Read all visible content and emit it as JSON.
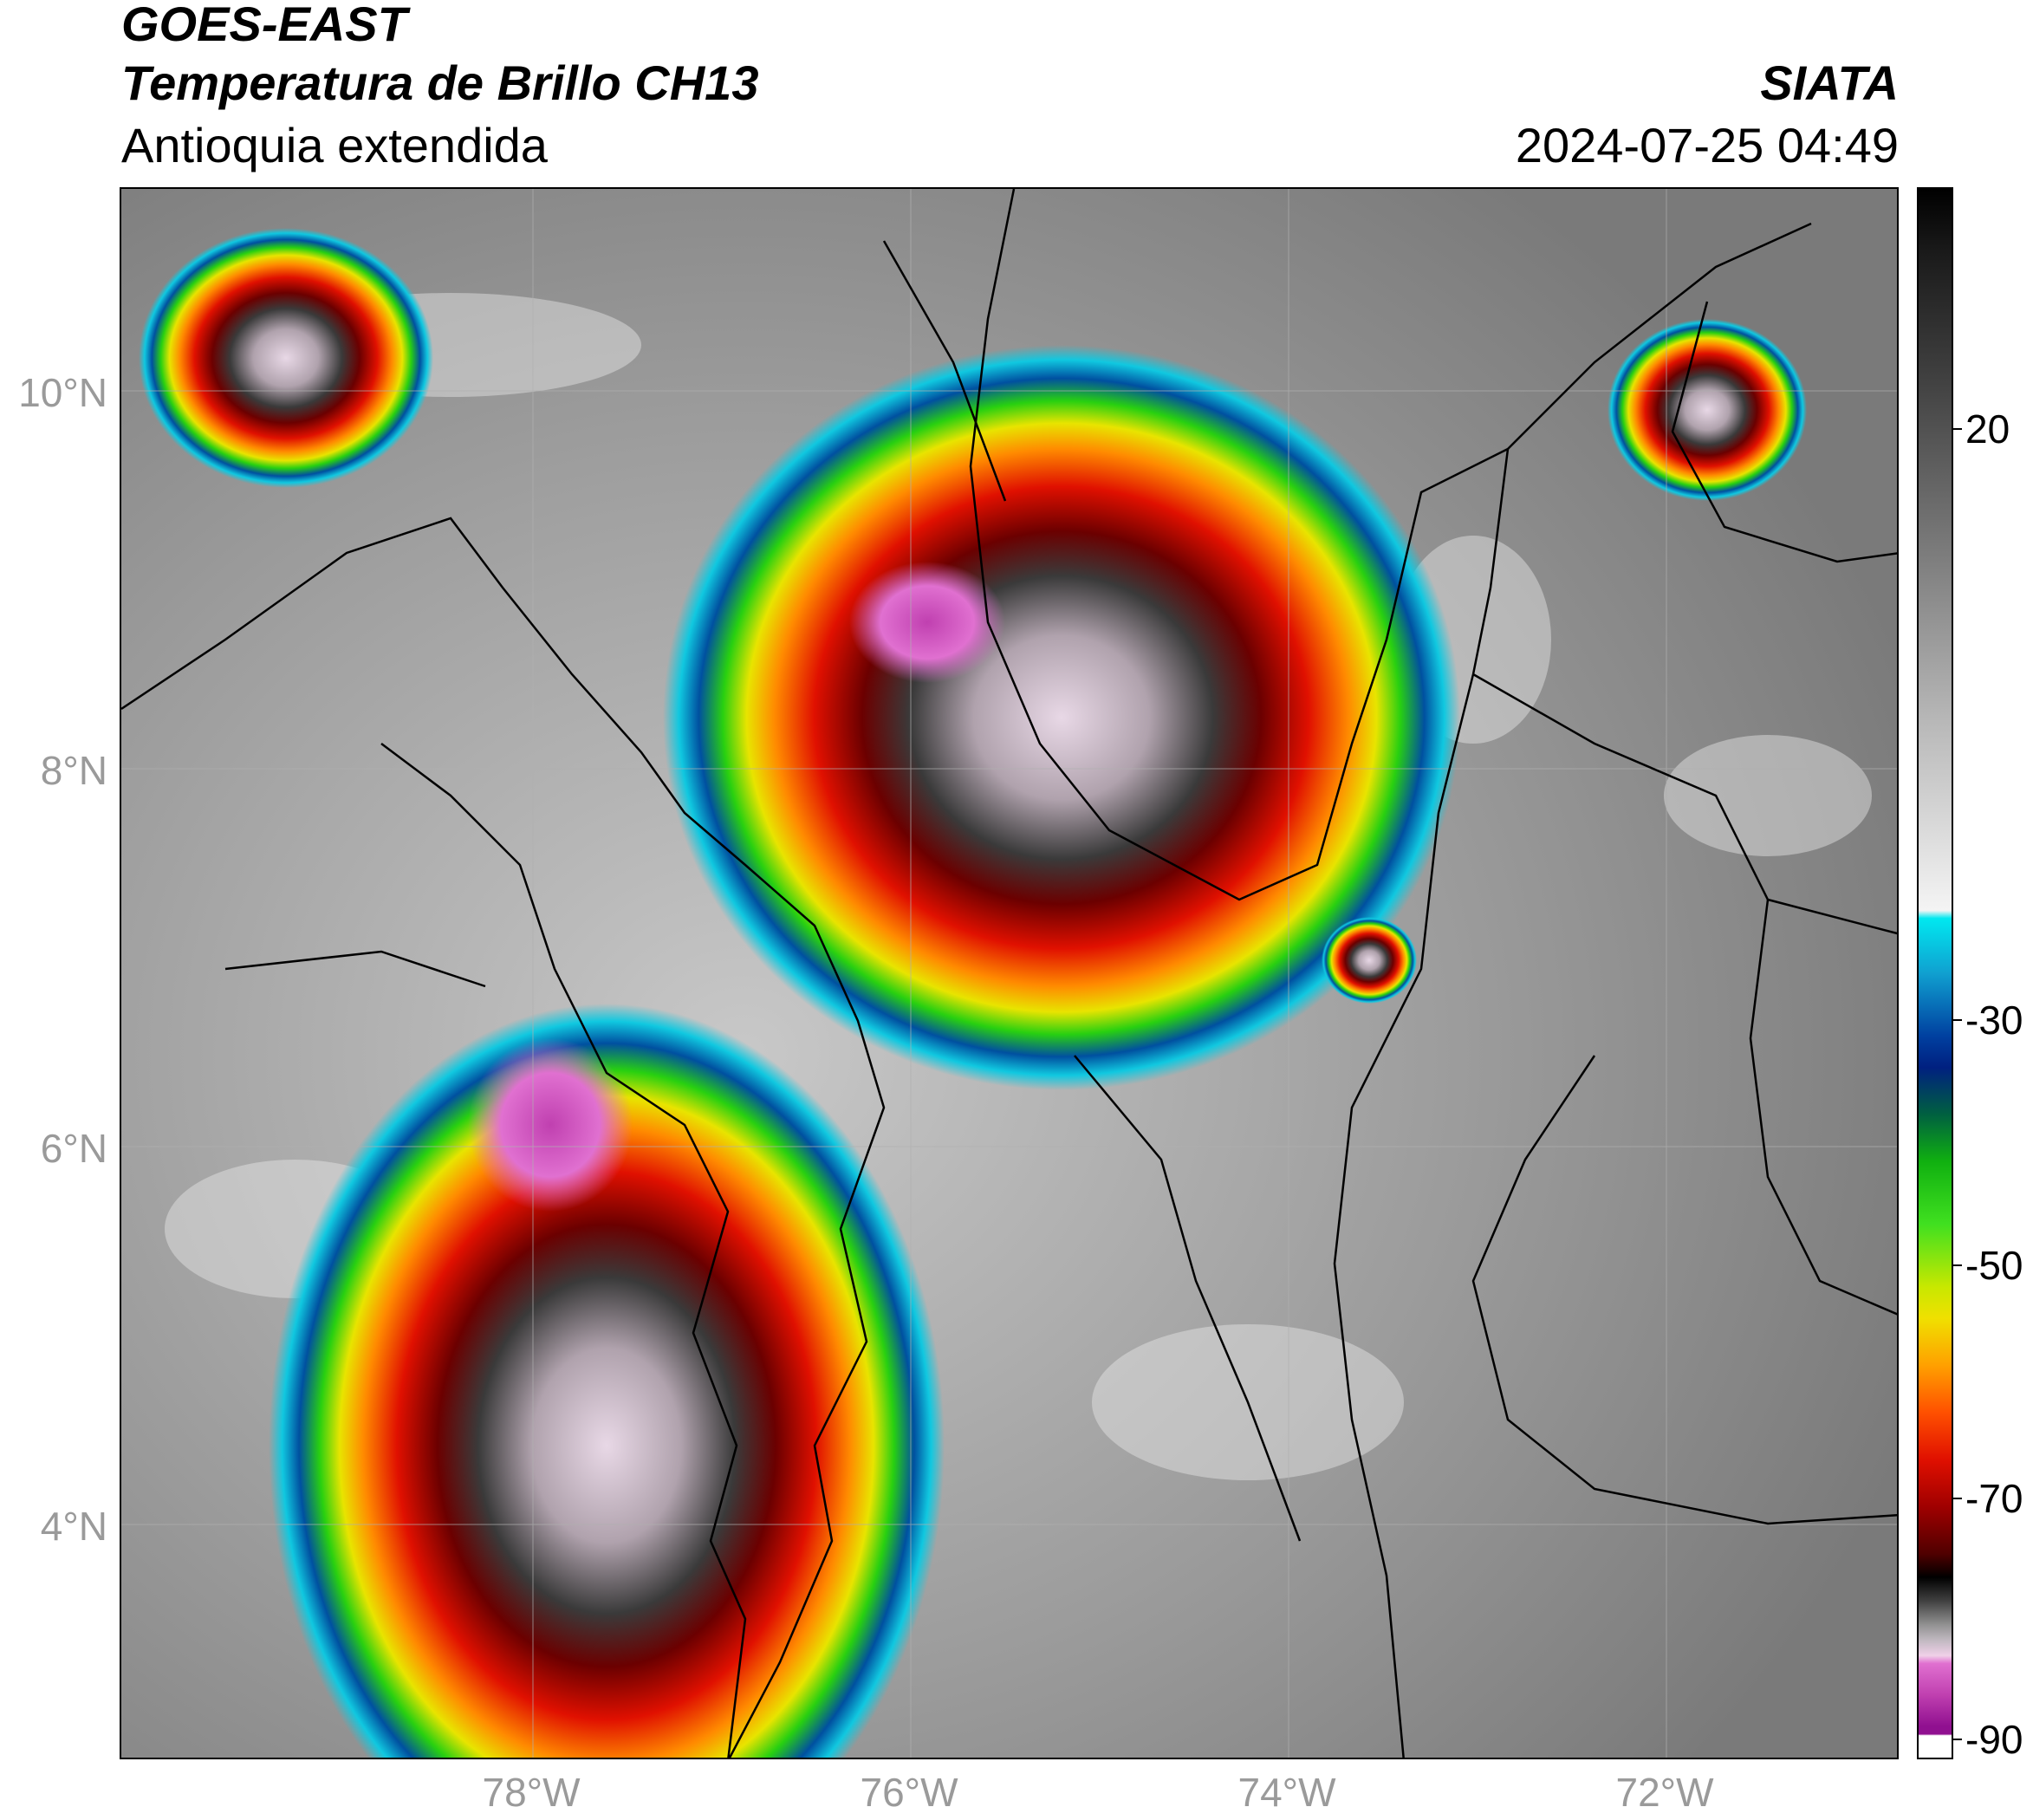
{
  "header": {
    "line1": "GOES-EAST",
    "line2": "Temperatura de Brillo CH13",
    "line3": "Antioquia extendida",
    "org": "SIATA",
    "datetime": "2024-07-25 04:49"
  },
  "map": {
    "lat_labels": [
      "10°N",
      "8°N",
      "6°N",
      "4°N"
    ],
    "lon_labels": [
      "78°W",
      "76°W",
      "74°W",
      "72°W"
    ]
  },
  "colorbar": {
    "labels": [
      "20",
      "-30",
      "-50",
      "-70",
      "-90"
    ],
    "colormap": "brightness temperature (°C): grayscale warm, cyan/blue/green/yellow/orange/red/black/gray/pink/purple cold"
  }
}
